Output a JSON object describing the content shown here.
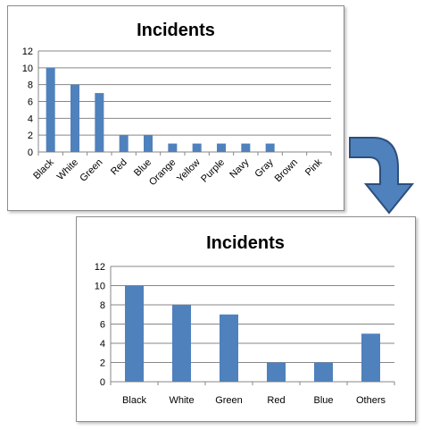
{
  "charts": {
    "top": {
      "title": "Incidents",
      "type": "bar",
      "categories": [
        "Black",
        "White",
        "Green",
        "Red",
        "Blue",
        "Orange",
        "Yellow",
        "Purple",
        "Navy",
        "Gray",
        "Brown",
        "Pink"
      ],
      "values": [
        10,
        8,
        7,
        2,
        2,
        1,
        1,
        1,
        1,
        1,
        0,
        0
      ],
      "ylim": [
        0,
        12
      ],
      "yticks": [
        "0",
        "2",
        "4",
        "6",
        "8",
        "10",
        "12"
      ],
      "label_rotation": "rotated-45"
    },
    "bottom": {
      "title": "Incidents",
      "type": "bar",
      "categories": [
        "Black",
        "White",
        "Green",
        "Red",
        "Blue",
        "Others"
      ],
      "values": [
        10,
        8,
        7,
        2,
        2,
        5
      ],
      "ylim": [
        0,
        12
      ],
      "yticks": [
        "0",
        "2",
        "4",
        "6",
        "8",
        "10",
        "12"
      ],
      "label_rotation": "horizontal"
    }
  },
  "colors": {
    "bar": "#4f81bd",
    "arrow_fill": "#4f81bd",
    "arrow_stroke": "#2c4f7c"
  },
  "arrow_icon": "curved-arrow-down-icon",
  "chart_data": [
    {
      "type": "bar",
      "title": "Incidents",
      "categories": [
        "Black",
        "White",
        "Green",
        "Red",
        "Blue",
        "Orange",
        "Yellow",
        "Purple",
        "Navy",
        "Gray",
        "Brown",
        "Pink"
      ],
      "values": [
        10,
        8,
        7,
        2,
        2,
        1,
        1,
        1,
        1,
        1,
        0,
        0
      ],
      "xlabel": "",
      "ylabel": "",
      "ylim": [
        0,
        12
      ],
      "grid": true,
      "legend": "none"
    },
    {
      "type": "bar",
      "title": "Incidents",
      "categories": [
        "Black",
        "White",
        "Green",
        "Red",
        "Blue",
        "Others"
      ],
      "values": [
        10,
        8,
        7,
        2,
        2,
        5
      ],
      "xlabel": "",
      "ylabel": "",
      "ylim": [
        0,
        12
      ],
      "grid": true,
      "legend": "none"
    }
  ]
}
